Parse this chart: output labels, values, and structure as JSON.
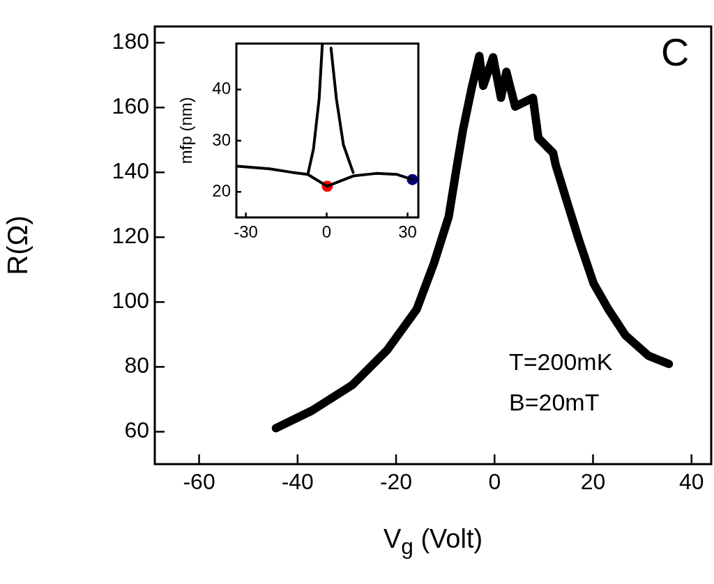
{
  "chart_data": [
    {
      "type": "line",
      "xlabel": "V$_{g}$ (Volt)",
      "ylabel": "R(Ω)",
      "color": "#000000",
      "x": [
        -44.4,
        -37.1,
        -28.9,
        -21.8,
        -15.8,
        -12.3,
        -9.3,
        -7.6,
        -6.4,
        -4.7,
        -3.1,
        -2.3,
        -0.3,
        1.3,
        2.4,
        4.2,
        7.8,
        8.9,
        11.9,
        12.4,
        14.9,
        17.1,
        20.1,
        23.1,
        26.6,
        31.3,
        35.4
      ],
      "values": [
        61.1,
        66.5,
        74.4,
        85.2,
        97.8,
        112,
        126.4,
        142.4,
        153.2,
        165.6,
        175.9,
        166.7,
        175.5,
        163,
        171,
        160.3,
        163,
        150.6,
        146,
        142.4,
        130,
        119.3,
        105.8,
        97.8,
        89.7,
        83.4,
        80.9
      ],
      "xlim": [
        -69,
        44
      ],
      "ylim": [
        50,
        185
      ],
      "xticks": [
        -60,
        -40,
        -20,
        0,
        20,
        40
      ],
      "yticks": [
        60,
        80,
        100,
        120,
        140,
        160,
        180
      ],
      "annotations": [
        "C",
        "T=200mK",
        "B=20mT"
      ]
    },
    {
      "type": "line",
      "ylabel": "mfp (nm)",
      "xlim": [
        -33.5,
        34
      ],
      "ylim": [
        15,
        49
      ],
      "xticks": [
        -30,
        0,
        30
      ],
      "yticks": [
        20,
        30,
        40
      ],
      "series": [
        {
          "color": "#000000",
          "x": [
            -33.1,
            -21.2,
            -12.7,
            -7.0,
            0.2,
            9.8,
            18.3,
            26.1,
            31.8
          ],
          "values": [
            25.0,
            24.5,
            23.8,
            23.4,
            21.1,
            23.1,
            23.6,
            23.4,
            22.4
          ]
        },
        {
          "color": "#000000",
          "x": [
            -7.0,
            -4.9,
            -2.8,
            -1.6,
            0,
            1.6,
            3.6,
            6.2,
            9.8
          ],
          "values": [
            23.4,
            28.4,
            38.2,
            49,
            null,
            48.1,
            38.2,
            29.2,
            23.8
          ]
        },
        {
          "type": "scatter",
          "color": "#ff0000",
          "x": [
            0.2
          ],
          "values": [
            21.1
          ]
        },
        {
          "type": "scatter",
          "color": "#000080",
          "x": [
            31.8
          ],
          "values": [
            22.4
          ]
        }
      ]
    }
  ]
}
